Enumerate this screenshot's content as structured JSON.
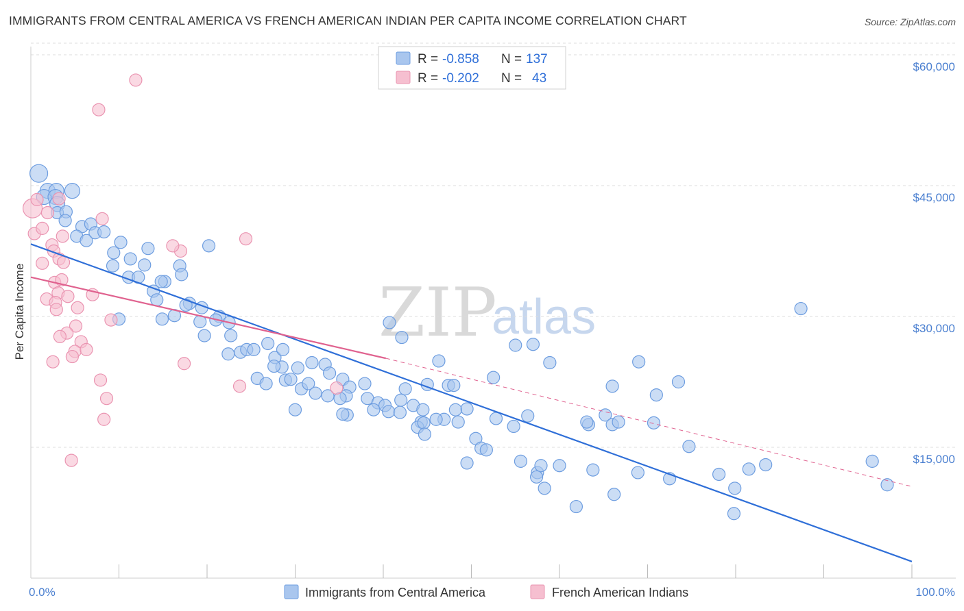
{
  "header": {
    "title": "IMMIGRANTS FROM CENTRAL AMERICA VS FRENCH AMERICAN INDIAN PER CAPITA INCOME CORRELATION CHART",
    "source": "Source: ZipAtlas.com"
  },
  "legend_top": {
    "rows": [
      {
        "r_label": "R =",
        "r_value": "-0.858",
        "n_label": "N =",
        "n_value": "137"
      },
      {
        "r_label": "R =",
        "r_value": "-0.202",
        "n_label": "N =",
        "n_value": "43"
      }
    ]
  },
  "watermark": {
    "zip": "ZIP",
    "atlas": "atlas"
  },
  "colors": {
    "blue_fill": "#a9c6ee",
    "blue_stroke": "#6d9de0",
    "blue_line": "#2f6fd8",
    "pink_fill": "#f6bfd0",
    "pink_stroke": "#ea94b1",
    "pink_line": "#e0628f",
    "tick_text": "#4a7fd0",
    "grid": "#dcdcdc"
  },
  "chart_data": {
    "type": "scatter",
    "title": "IMMIGRANTS FROM CENTRAL AMERICA VS FRENCH AMERICAN INDIAN PER CAPITA INCOME CORRELATION CHART",
    "xlabel": "",
    "ylabel": "Per Capita Income",
    "xlim": [
      0,
      100
    ],
    "ylim": [
      0,
      61500
    ],
    "x_tick_labels": [
      "0.0%",
      "100.0%"
    ],
    "y_ticks": [
      15000,
      30000,
      45000,
      60000
    ],
    "y_tick_labels": [
      "$15,000",
      "$30,000",
      "$45,000",
      "$60,000"
    ],
    "grid": true,
    "legend_position": "bottom",
    "series": [
      {
        "name": "Immigrants from Central America",
        "color": "#a9c6ee",
        "r": -0.858,
        "n": 137,
        "trend": {
          "x": [
            0,
            100
          ],
          "y": [
            38300,
            1900
          ],
          "style": "solid"
        },
        "points": [
          [
            0.9,
            46400
          ],
          [
            1.9,
            44400
          ],
          [
            1.5,
            43700
          ],
          [
            2.9,
            44400
          ],
          [
            2.8,
            43700
          ],
          [
            3.0,
            42900
          ],
          [
            4.7,
            44400
          ],
          [
            3.0,
            41900
          ],
          [
            4.0,
            42000
          ],
          [
            3.9,
            41000
          ],
          [
            5.8,
            40300
          ],
          [
            6.8,
            40600
          ],
          [
            5.2,
            39200
          ],
          [
            6.3,
            38700
          ],
          [
            7.3,
            39600
          ],
          [
            8.3,
            39700
          ],
          [
            10.2,
            38500
          ],
          [
            13.3,
            37800
          ],
          [
            9.4,
            37300
          ],
          [
            11.3,
            36600
          ],
          [
            12.9,
            35900
          ],
          [
            16.9,
            35800
          ],
          [
            9.3,
            35800
          ],
          [
            17.1,
            34800
          ],
          [
            11.1,
            34500
          ],
          [
            12.2,
            34500
          ],
          [
            15.2,
            34000
          ],
          [
            14.8,
            34000
          ],
          [
            13.9,
            32900
          ],
          [
            14.3,
            31900
          ],
          [
            18.0,
            31500
          ],
          [
            17.6,
            31300
          ],
          [
            20.2,
            38100
          ],
          [
            10.0,
            29700
          ],
          [
            14.9,
            29700
          ],
          [
            16.3,
            30100
          ],
          [
            21.4,
            30000
          ],
          [
            21.0,
            29600
          ],
          [
            19.2,
            29400
          ],
          [
            22.5,
            29300
          ],
          [
            19.7,
            27800
          ],
          [
            22.7,
            27800
          ],
          [
            26.9,
            26900
          ],
          [
            22.4,
            25700
          ],
          [
            23.8,
            25900
          ],
          [
            24.5,
            26200
          ],
          [
            25.3,
            26200
          ],
          [
            27.7,
            25300
          ],
          [
            28.5,
            24200
          ],
          [
            27.6,
            24300
          ],
          [
            30.3,
            24100
          ],
          [
            31.9,
            24700
          ],
          [
            33.4,
            24500
          ],
          [
            25.7,
            22900
          ],
          [
            26.7,
            22300
          ],
          [
            28.9,
            22700
          ],
          [
            29.5,
            22800
          ],
          [
            30.7,
            21700
          ],
          [
            31.5,
            22300
          ],
          [
            32.3,
            21200
          ],
          [
            33.9,
            23500
          ],
          [
            35.4,
            22800
          ],
          [
            36.2,
            21900
          ],
          [
            33.7,
            20900
          ],
          [
            35.8,
            20900
          ],
          [
            35.1,
            20600
          ],
          [
            37.9,
            22300
          ],
          [
            38.2,
            20600
          ],
          [
            39.4,
            20100
          ],
          [
            40.2,
            19800
          ],
          [
            38.9,
            19300
          ],
          [
            40.6,
            19100
          ],
          [
            42.0,
            20400
          ],
          [
            41.9,
            19000
          ],
          [
            43.4,
            19800
          ],
          [
            44.5,
            19300
          ],
          [
            30.0,
            19300
          ],
          [
            35.9,
            18700
          ],
          [
            35.4,
            18800
          ],
          [
            45.0,
            22200
          ],
          [
            47.4,
            22100
          ],
          [
            48.0,
            22100
          ],
          [
            42.5,
            21700
          ],
          [
            44.3,
            17900
          ],
          [
            46.9,
            18200
          ],
          [
            43.9,
            17300
          ],
          [
            44.6,
            17800
          ],
          [
            46.0,
            18200
          ],
          [
            49.5,
            19400
          ],
          [
            44.7,
            16500
          ],
          [
            48.2,
            19300
          ],
          [
            48.5,
            17900
          ],
          [
            50.5,
            16000
          ],
          [
            51.1,
            14900
          ],
          [
            49.5,
            13200
          ],
          [
            52.8,
            18300
          ],
          [
            54.8,
            17400
          ],
          [
            51.7,
            14700
          ],
          [
            56.4,
            18600
          ],
          [
            55.6,
            13400
          ],
          [
            57.5,
            12100
          ],
          [
            57.9,
            12900
          ],
          [
            60.0,
            12900
          ],
          [
            57.4,
            11600
          ],
          [
            58.3,
            10300
          ],
          [
            58.9,
            24700
          ],
          [
            63.3,
            17600
          ],
          [
            63.1,
            17900
          ],
          [
            63.8,
            12400
          ],
          [
            65.2,
            18700
          ],
          [
            66.0,
            17600
          ],
          [
            66.7,
            17900
          ],
          [
            66.0,
            22000
          ],
          [
            71.0,
            21000
          ],
          [
            70.7,
            17800
          ],
          [
            74.7,
            15100
          ],
          [
            78.1,
            11900
          ],
          [
            79.8,
            7400
          ],
          [
            79.9,
            10300
          ],
          [
            72.5,
            11400
          ],
          [
            61.9,
            8200
          ],
          [
            81.5,
            12500
          ],
          [
            87.4,
            30900
          ],
          [
            95.5,
            13400
          ],
          [
            97.2,
            10700
          ],
          [
            66.2,
            9600
          ],
          [
            68.9,
            12100
          ],
          [
            57.0,
            26800
          ],
          [
            55.0,
            26700
          ],
          [
            69.0,
            24800
          ],
          [
            42.1,
            27600
          ],
          [
            46.3,
            24900
          ],
          [
            73.5,
            22500
          ],
          [
            83.4,
            13000
          ],
          [
            28.6,
            26200
          ],
          [
            19.4,
            31000
          ],
          [
            40.7,
            29300
          ],
          [
            52.5,
            23000
          ]
        ]
      },
      {
        "name": "French American Indians",
        "color": "#f6bfd0",
        "r": -0.202,
        "n": 43,
        "trend": {
          "x": [
            0,
            40.3,
            100
          ],
          "y": [
            34500,
            25200,
            10500
          ],
          "style": "solid then dashed"
        },
        "points": [
          [
            0.2,
            42400
          ],
          [
            0.7,
            43400
          ],
          [
            0.4,
            39500
          ],
          [
            2.4,
            38200
          ],
          [
            2.6,
            37500
          ],
          [
            1.3,
            36100
          ],
          [
            3.6,
            39200
          ],
          [
            3.2,
            36600
          ],
          [
            3.7,
            36200
          ],
          [
            2.7,
            33900
          ],
          [
            3.5,
            34200
          ],
          [
            3.1,
            32700
          ],
          [
            1.8,
            32000
          ],
          [
            2.8,
            31600
          ],
          [
            2.9,
            30800
          ],
          [
            4.2,
            32300
          ],
          [
            7.0,
            32500
          ],
          [
            5.3,
            31000
          ],
          [
            9.1,
            29600
          ],
          [
            5.1,
            28900
          ],
          [
            4.1,
            28100
          ],
          [
            3.3,
            27700
          ],
          [
            5.7,
            27100
          ],
          [
            5.0,
            26000
          ],
          [
            6.3,
            26200
          ],
          [
            2.5,
            24800
          ],
          [
            4.7,
            25400
          ],
          [
            7.9,
            22700
          ],
          [
            8.6,
            20600
          ],
          [
            8.3,
            18200
          ],
          [
            4.6,
            13500
          ],
          [
            11.9,
            57100
          ],
          [
            7.7,
            53700
          ],
          [
            8.1,
            41200
          ],
          [
            17.0,
            37500
          ],
          [
            16.1,
            38100
          ],
          [
            24.4,
            38900
          ],
          [
            17.4,
            24600
          ],
          [
            23.7,
            22000
          ],
          [
            34.7,
            21800
          ],
          [
            3.2,
            43500
          ],
          [
            1.3,
            40100
          ],
          [
            1.9,
            41900
          ]
        ]
      }
    ]
  },
  "axes": {
    "y_title": "Per Capita Income",
    "x_min_label": "0.0%",
    "x_max_label": "100.0%",
    "y_labels": [
      "$15,000",
      "$30,000",
      "$45,000",
      "$60,000"
    ]
  },
  "legend_bottom": {
    "items": [
      {
        "label": "Immigrants from Central America"
      },
      {
        "label": "French American Indians"
      }
    ]
  }
}
